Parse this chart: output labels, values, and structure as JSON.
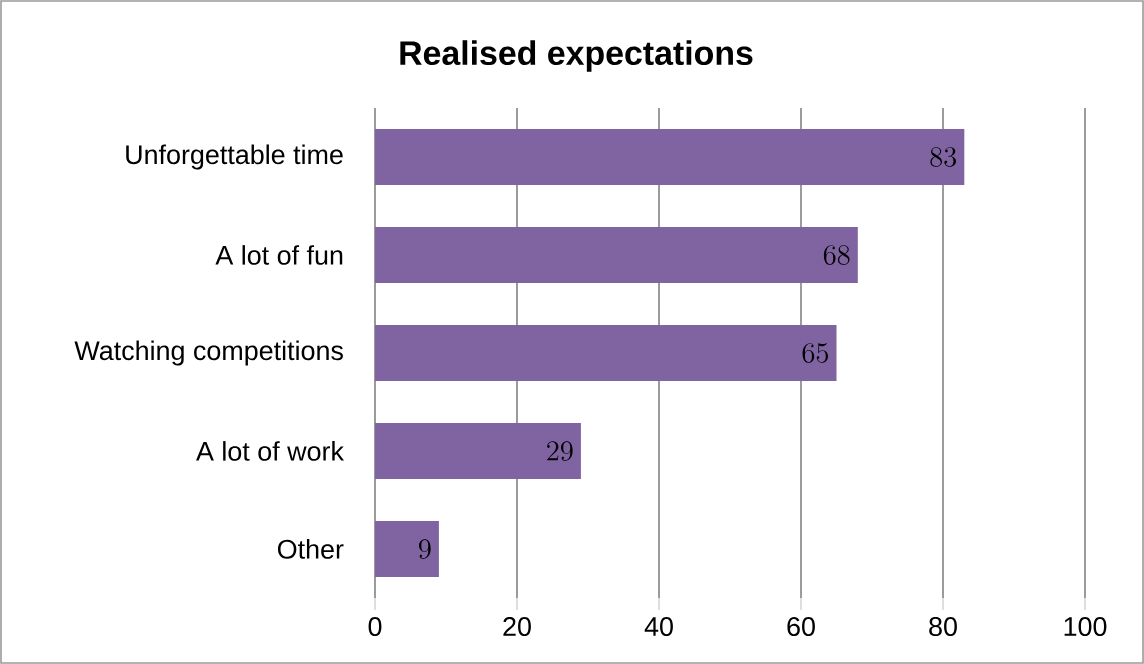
{
  "chart_data": {
    "type": "bar",
    "orientation": "horizontal",
    "title": "Realised expectations",
    "categories": [
      "Unforgettable time",
      "A lot of fun",
      "Watching competitions",
      "A lot of work",
      "Other"
    ],
    "values": [
      83,
      68,
      65,
      29,
      9
    ],
    "color": "#8064a2",
    "xlim": [
      0,
      100
    ],
    "xticks": [
      0,
      20,
      40,
      60,
      80,
      100
    ],
    "grid": "x",
    "data_labels": true
  }
}
